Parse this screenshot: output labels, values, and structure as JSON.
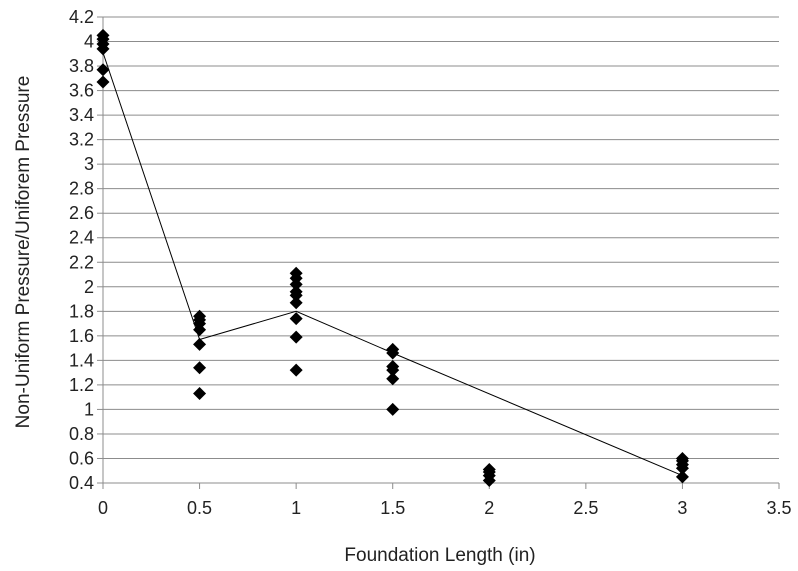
{
  "chart_data": {
    "type": "scatter",
    "title": "",
    "xlabel": "Foundation Length (in)",
    "ylabel": "Non-Uniform Pressure/Uniforem Pressure",
    "xlim": [
      0,
      3.5
    ],
    "ylim": [
      0.4,
      4.2
    ],
    "x_ticks": [
      0,
      0.5,
      1,
      1.5,
      2,
      2.5,
      3,
      3.5
    ],
    "x_tick_labels": [
      "0",
      "0.5",
      "1",
      "1.5",
      "2",
      "2.5",
      "3",
      "3.5"
    ],
    "y_ticks": [
      0.4,
      0.6,
      0.8,
      1,
      1.2,
      1.4,
      1.6,
      1.8,
      2,
      2.2,
      2.4,
      2.6,
      2.8,
      3,
      3.2,
      3.4,
      3.6,
      3.8,
      4,
      4.2
    ],
    "y_tick_labels": [
      "0.4",
      "0.6",
      "0.8",
      "1",
      "1.2",
      "1.4",
      "1.6",
      "1.8",
      "2",
      "2.2",
      "2.4",
      "2.6",
      "2.8",
      "3",
      "3.2",
      "3.4",
      "3.6",
      "3.8",
      "4",
      "4.2"
    ],
    "grid": "horizontal",
    "legend": "none",
    "marker": "diamond",
    "marker_color": "#000000",
    "line_color": "#000000",
    "series": [
      {
        "points": [
          [
            0,
            4.05
          ],
          [
            0,
            4.02
          ],
          [
            0,
            3.98
          ],
          [
            0,
            3.94
          ],
          [
            0,
            3.77
          ],
          [
            0,
            3.67
          ],
          [
            0.5,
            1.76
          ],
          [
            0.5,
            1.73
          ],
          [
            0.5,
            1.7
          ],
          [
            0.5,
            1.65
          ],
          [
            0.5,
            1.53
          ],
          [
            0.5,
            1.34
          ],
          [
            0.5,
            1.13
          ],
          [
            1,
            2.11
          ],
          [
            1,
            2.07
          ],
          [
            1,
            2.02
          ],
          [
            1,
            1.96
          ],
          [
            1,
            1.93
          ],
          [
            1,
            1.87
          ],
          [
            1,
            1.74
          ],
          [
            1,
            1.59
          ],
          [
            1,
            1.32
          ],
          [
            1.5,
            1.49
          ],
          [
            1.5,
            1.46
          ],
          [
            1.5,
            1.35
          ],
          [
            1.5,
            1.32
          ],
          [
            1.5,
            1.25
          ],
          [
            1.5,
            1.0
          ],
          [
            2,
            0.51
          ],
          [
            2,
            0.49
          ],
          [
            2,
            0.46
          ],
          [
            2,
            0.42
          ],
          [
            3,
            0.6
          ],
          [
            3,
            0.58
          ],
          [
            3,
            0.55
          ],
          [
            3,
            0.52
          ],
          [
            3,
            0.45
          ]
        ]
      },
      {
        "line": [
          [
            0,
            3.91
          ],
          [
            0.5,
            1.57
          ],
          [
            1,
            1.8
          ],
          [
            1.5,
            1.46
          ],
          [
            3,
            0.46
          ]
        ]
      }
    ]
  }
}
